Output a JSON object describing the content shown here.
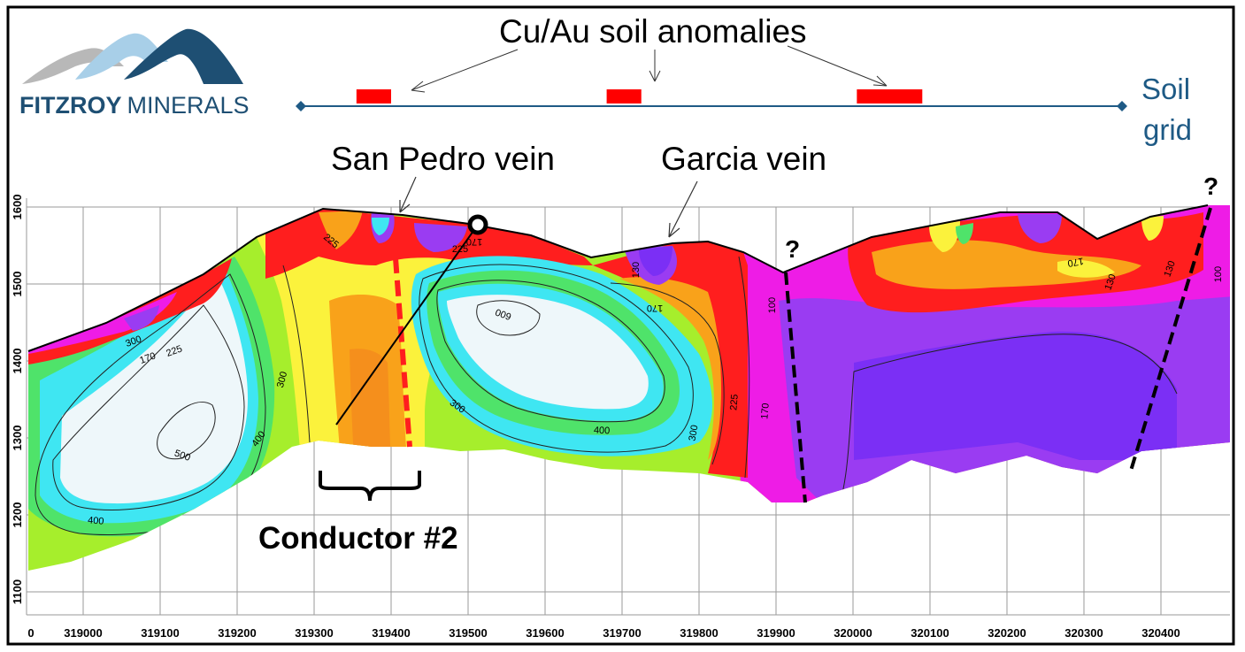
{
  "logo": {
    "name_bold": "FITZROY",
    "name_light": "MINERALS",
    "colors": {
      "mountain_dark": "#1e4f73",
      "mountain_light": "#a8cfe8",
      "mountain_grey": "#b8b8b8"
    }
  },
  "soil": {
    "title": "Cu/Au soil anomalies",
    "grid_label_1": "Soil",
    "grid_label_2": "grid",
    "line_color": "#1e5a85",
    "anomaly_color": "#ff0000",
    "anomalies": [
      {
        "from": 319355,
        "to": 319400
      },
      {
        "from": 319680,
        "to": 319725
      },
      {
        "from": 320005,
        "to": 320090
      }
    ]
  },
  "labels": {
    "san_pedro": "San Pedro vein",
    "garcia": "Garcia vein",
    "conductor": "Conductor #2",
    "question": "?"
  },
  "axes": {
    "x_ticks": [
      "0",
      "319000",
      "319100",
      "319200",
      "319300",
      "319400",
      "319500",
      "319600",
      "319700",
      "319800",
      "319900",
      "320000",
      "320100",
      "320200",
      "320300",
      "320400"
    ],
    "y_ticks": [
      "1600",
      "1500",
      "1400",
      "1300",
      "1200",
      "1100"
    ]
  },
  "contour_labels": [
    "500",
    "400",
    "300",
    "225",
    "170",
    "130",
    "100",
    "600"
  ],
  "palette": {
    "white": "#eef7fa",
    "cyan": "#3fe6f2",
    "green": "#4fe36a",
    "lime": "#a6ee2c",
    "yellow": "#fbf23c",
    "orange": "#f9a21a",
    "red": "#ff1e1e",
    "magenta": "#ee1ce6",
    "purple": "#9a3cf2",
    "violet": "#7b2ff5"
  }
}
